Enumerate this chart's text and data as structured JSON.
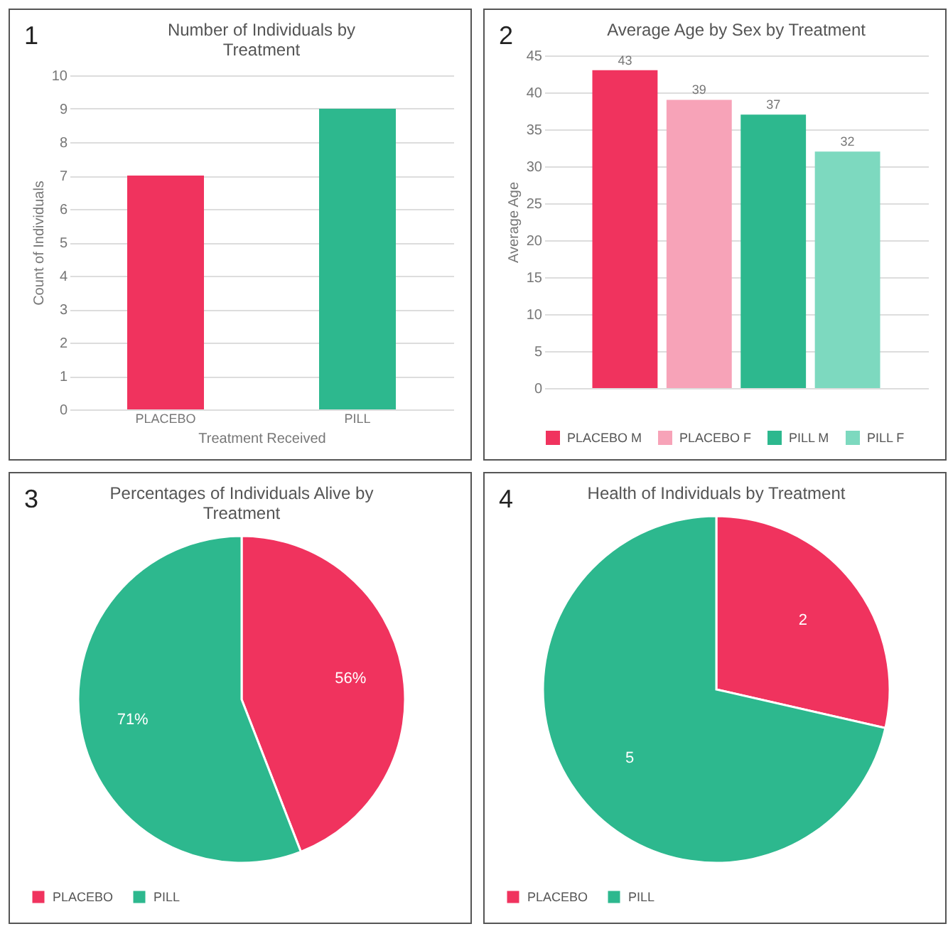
{
  "chart_data": [
    {
      "type": "bar",
      "title": "Number of Individuals by Treatment",
      "annotations": [
        "1"
      ],
      "xlabel": "Treatment Received",
      "ylabel": "Count of Individuals",
      "categories": [
        "PLACEBO",
        "PILL"
      ],
      "values": [
        7,
        9
      ],
      "colors": [
        "#f0335e",
        "#2db88e"
      ],
      "ylim": [
        0,
        10
      ],
      "yticks": [
        0,
        1,
        2,
        3,
        4,
        5,
        6,
        7,
        8,
        9,
        10
      ],
      "grid": "y"
    },
    {
      "type": "bar",
      "title": "Average Age by Sex by Treatment",
      "annotations": [
        "2"
      ],
      "ylabel": "Average Age",
      "categories": [
        null
      ],
      "series": [
        {
          "name": "PLACEBO M",
          "color": "#f0335e",
          "values": [
            43
          ]
        },
        {
          "name": "PLACEBO F",
          "color": "#f7a3b8",
          "values": [
            39
          ]
        },
        {
          "name": "PILL M",
          "color": "#2db88e",
          "values": [
            37
          ]
        },
        {
          "name": "PILL F",
          "color": "#7dd9bf",
          "values": [
            32
          ]
        }
      ],
      "ylim": [
        0,
        45
      ],
      "yticks": [
        0,
        5,
        10,
        15,
        20,
        25,
        30,
        35,
        40,
        45
      ],
      "grid": "y",
      "legend": "bottom",
      "data_labels": true
    },
    {
      "type": "pie",
      "title": "Percentages of Individuals Alive by Treatment",
      "annotations": [
        "3"
      ],
      "categories": [
        "PLACEBO",
        "PILL"
      ],
      "values": [
        56,
        71
      ],
      "colors": [
        "#f0335e",
        "#2db88e"
      ],
      "value_labels": [
        "56%",
        "71%"
      ],
      "legend": "bottom"
    },
    {
      "type": "pie",
      "title": "Health of Individuals by Treatment",
      "annotations": [
        "4"
      ],
      "categories": [
        "PLACEBO",
        "PILL"
      ],
      "values": [
        2,
        5
      ],
      "colors": [
        "#f0335e",
        "#2db88e"
      ],
      "data_labels": true,
      "legend": "bottom"
    }
  ]
}
